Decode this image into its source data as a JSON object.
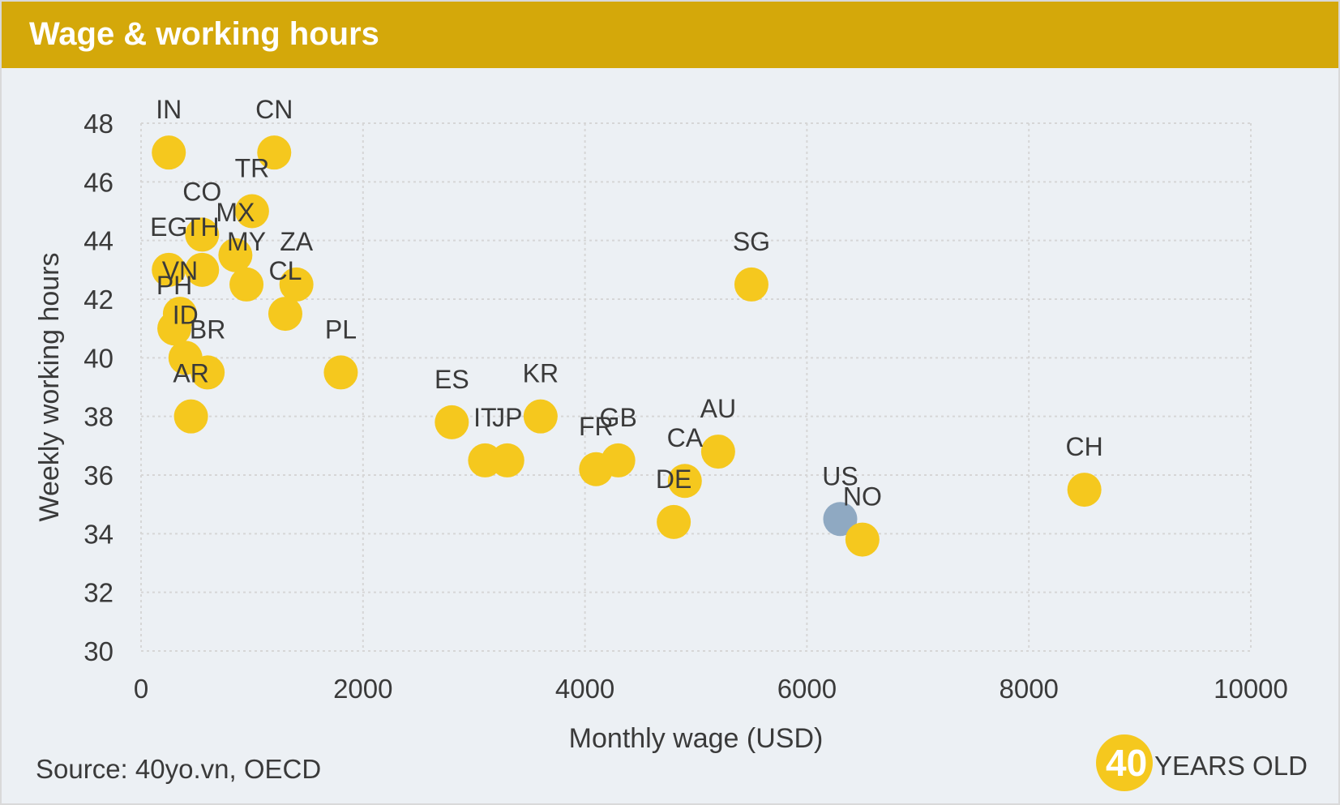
{
  "header": {
    "title": "Wage & working hours"
  },
  "footer": {
    "source": "Source: 40yo.vn, OECD"
  },
  "brand": {
    "number": "40",
    "text": "YEARS OLD"
  },
  "colors": {
    "header_bg": "#d4a80a",
    "point": "#f5c81e",
    "highlight": "#8fa9c2",
    "panel_bg": "#ecf0f4",
    "grid": "#d6d6d6"
  },
  "chart_data": {
    "type": "scatter",
    "title": "Wage & working hours",
    "xlabel": "Monthly wage (USD)",
    "ylabel": "Weekly working hours",
    "xlim": [
      0,
      10000
    ],
    "ylim": [
      30,
      48
    ],
    "xticks": [
      0,
      2000,
      4000,
      6000,
      8000,
      10000
    ],
    "yticks": [
      30,
      32,
      34,
      36,
      38,
      40,
      42,
      44,
      46,
      48
    ],
    "grid": true,
    "highlight": "US",
    "points": [
      {
        "label": "IN",
        "x": 250,
        "y": 47
      },
      {
        "label": "CN",
        "x": 1200,
        "y": 47
      },
      {
        "label": "TR",
        "x": 1000,
        "y": 45
      },
      {
        "label": "CO",
        "x": 550,
        "y": 44.2
      },
      {
        "label": "MX",
        "x": 850,
        "y": 43.5
      },
      {
        "label": "EG",
        "x": 250,
        "y": 43
      },
      {
        "label": "TH",
        "x": 550,
        "y": 43
      },
      {
        "label": "MY",
        "x": 950,
        "y": 42.5
      },
      {
        "label": "ZA",
        "x": 1400,
        "y": 42.5
      },
      {
        "label": "CL",
        "x": 1300,
        "y": 41.5
      },
      {
        "label": "VN",
        "x": 350,
        "y": 41.5
      },
      {
        "label": "PH",
        "x": 300,
        "y": 41
      },
      {
        "label": "ID",
        "x": 400,
        "y": 40
      },
      {
        "label": "BR",
        "x": 600,
        "y": 39.5
      },
      {
        "label": "AR",
        "x": 450,
        "y": 38
      },
      {
        "label": "PL",
        "x": 1800,
        "y": 39.5
      },
      {
        "label": "SG",
        "x": 5500,
        "y": 42.5
      },
      {
        "label": "ES",
        "x": 2800,
        "y": 37.8
      },
      {
        "label": "KR",
        "x": 3600,
        "y": 38
      },
      {
        "label": "IT",
        "x": 3100,
        "y": 36.5
      },
      {
        "label": "JP",
        "x": 3300,
        "y": 36.5
      },
      {
        "label": "FR",
        "x": 4100,
        "y": 36.2
      },
      {
        "label": "GB",
        "x": 4300,
        "y": 36.5
      },
      {
        "label": "AU",
        "x": 5200,
        "y": 36.8
      },
      {
        "label": "CA",
        "x": 4900,
        "y": 35.8
      },
      {
        "label": "DE",
        "x": 4800,
        "y": 34.4
      },
      {
        "label": "US",
        "x": 6300,
        "y": 34.5
      },
      {
        "label": "NO",
        "x": 6500,
        "y": 33.8
      },
      {
        "label": "CH",
        "x": 8500,
        "y": 35.5
      }
    ]
  }
}
